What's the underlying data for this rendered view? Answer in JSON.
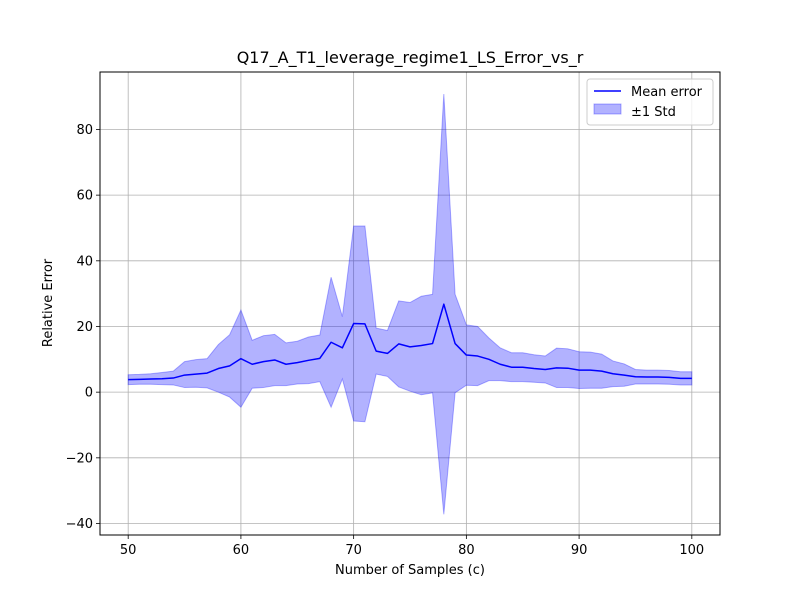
{
  "chart_data": {
    "type": "line",
    "title": "Q17_A_T1_leverage_regime1_LS_Error_vs_r",
    "xlabel": "Number of Samples (c)",
    "ylabel": "Relative Error",
    "xlim": [
      47.5,
      102.5
    ],
    "ylim": [
      -43.5,
      97.5
    ],
    "xticks": [
      50,
      60,
      70,
      80,
      90,
      100
    ],
    "yticks": [
      -40,
      -20,
      0,
      20,
      40,
      60,
      80
    ],
    "grid": true,
    "legend_position": "upper right",
    "series": [
      {
        "name": "Mean error",
        "kind": "line",
        "color": "#0000ff",
        "x": [
          50,
          51,
          52,
          53,
          54,
          55,
          56,
          57,
          58,
          59,
          60,
          61,
          62,
          63,
          64,
          65,
          66,
          67,
          68,
          69,
          70,
          71,
          72,
          73,
          74,
          75,
          76,
          77,
          78,
          79,
          80,
          81,
          82,
          83,
          84,
          85,
          86,
          87,
          88,
          89,
          90,
          91,
          92,
          93,
          94,
          95,
          96,
          97,
          98,
          99,
          100
        ],
        "values": [
          3.8,
          3.9,
          4.0,
          4.1,
          4.3,
          5.2,
          5.5,
          5.8,
          7.2,
          8.0,
          10.2,
          8.5,
          9.3,
          9.8,
          8.5,
          9.0,
          9.7,
          10.3,
          15.2,
          13.5,
          20.9,
          20.8,
          12.5,
          11.8,
          14.7,
          13.8,
          14.2,
          14.8,
          26.8,
          14.8,
          11.3,
          11.0,
          10.0,
          8.5,
          7.6,
          7.6,
          7.2,
          6.9,
          7.4,
          7.3,
          6.7,
          6.7,
          6.4,
          5.6,
          5.2,
          4.7,
          4.6,
          4.6,
          4.5,
          4.2,
          4.2
        ]
      },
      {
        "name": "±1 Std",
        "kind": "band",
        "color": "#0000ff",
        "opacity": 0.3,
        "x": [
          50,
          51,
          52,
          53,
          54,
          55,
          56,
          57,
          58,
          59,
          60,
          61,
          62,
          63,
          64,
          65,
          66,
          67,
          68,
          69,
          70,
          71,
          72,
          73,
          74,
          75,
          76,
          77,
          78,
          79,
          80,
          81,
          82,
          83,
          84,
          85,
          86,
          87,
          88,
          89,
          90,
          91,
          92,
          93,
          94,
          95,
          96,
          97,
          98,
          99,
          100
        ],
        "upper": [
          5.3,
          5.4,
          5.6,
          6.0,
          6.4,
          9.3,
          9.9,
          10.2,
          14.5,
          17.5,
          25.0,
          15.8,
          17.2,
          17.6,
          15.0,
          15.5,
          16.8,
          17.4,
          35.0,
          23.0,
          50.6,
          50.6,
          19.5,
          18.8,
          27.8,
          27.3,
          29.2,
          29.8,
          90.8,
          29.8,
          20.5,
          20.0,
          16.5,
          13.5,
          12.0,
          12.0,
          11.4,
          11.0,
          13.4,
          13.2,
          12.3,
          12.2,
          11.6,
          9.5,
          8.6,
          6.9,
          6.7,
          6.7,
          6.6,
          6.2,
          6.2
        ],
        "lower": [
          2.3,
          2.4,
          2.4,
          2.3,
          2.2,
          1.4,
          1.5,
          1.3,
          0.0,
          -1.5,
          -4.6,
          1.2,
          1.4,
          2.0,
          2.0,
          2.5,
          2.6,
          3.2,
          -4.6,
          4.0,
          -8.8,
          -9.0,
          5.5,
          4.8,
          1.6,
          0.3,
          -0.8,
          -0.2,
          -37.2,
          -0.2,
          2.1,
          2.0,
          3.5,
          3.5,
          3.2,
          3.2,
          3.0,
          2.8,
          1.4,
          1.4,
          1.1,
          1.2,
          1.2,
          1.7,
          1.8,
          2.5,
          2.5,
          2.5,
          2.4,
          2.2,
          2.2
        ]
      }
    ]
  }
}
